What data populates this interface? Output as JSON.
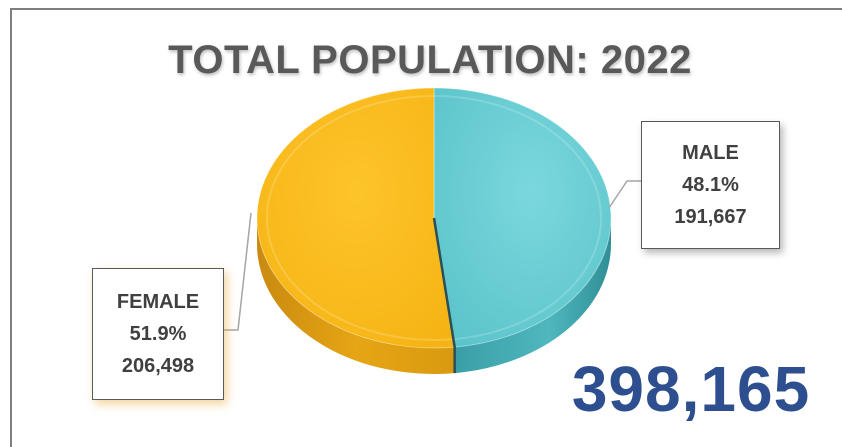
{
  "chart_data": {
    "type": "pie",
    "title": "TOTAL POPULATION: 2022",
    "slices": [
      {
        "label": "MALE",
        "percent": "48.1%",
        "value": 191667,
        "value_text": "191,667",
        "color": "#67cdd3"
      },
      {
        "label": "FEMALE",
        "percent": "51.9%",
        "value": 206498,
        "value_text": "206,498",
        "color": "#fcbd1d"
      }
    ],
    "total_text": "398,165",
    "total_color": "#2e4f8f",
    "style": "3d"
  }
}
